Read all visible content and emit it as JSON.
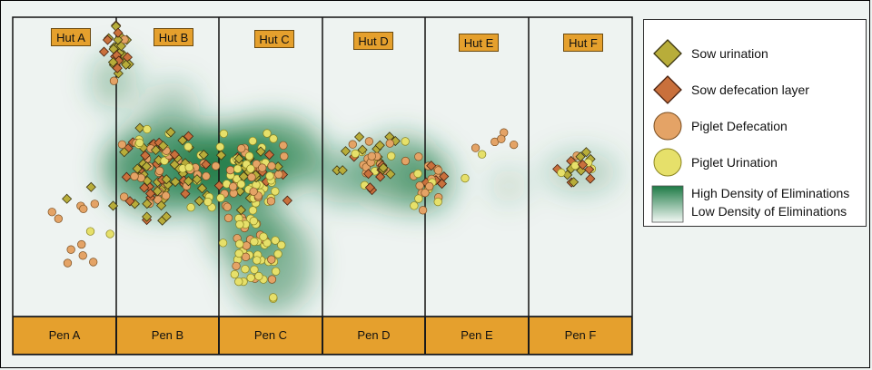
{
  "huts": [
    "Hut A",
    "Hut B",
    "Hut C",
    "Hut D",
    "Hut E",
    "Hut F"
  ],
  "pens": [
    "Pen A",
    "Pen B",
    "Pen C",
    "Pen D",
    "Pen E",
    "Pen F"
  ],
  "legend": {
    "sow_urination": "Sow urination",
    "sow_defecation": "Sow defecation layer",
    "piglet_defecation": "Piglet Defecation",
    "piglet_urination": "Piglet Urination",
    "high_density": "High Density of Eliminations",
    "low_density": "Low Density of Eliminations"
  },
  "colors": {
    "hut_fill": "#e5a02d",
    "pen_fill": "#e5a02d",
    "sow_urination": "#b8ad3a",
    "sow_defecation": "#c9703c",
    "piglet_defecation": "#e4a366",
    "piglet_urination": "#e6e06a",
    "density_high": "#1d7a45",
    "density_low": "#f2f8f4"
  },
  "icons": {
    "sow_urination": "diamond-icon",
    "sow_defecation": "diamond-icon",
    "piglet_defecation": "circle-icon",
    "piglet_urination": "circle-icon"
  }
}
